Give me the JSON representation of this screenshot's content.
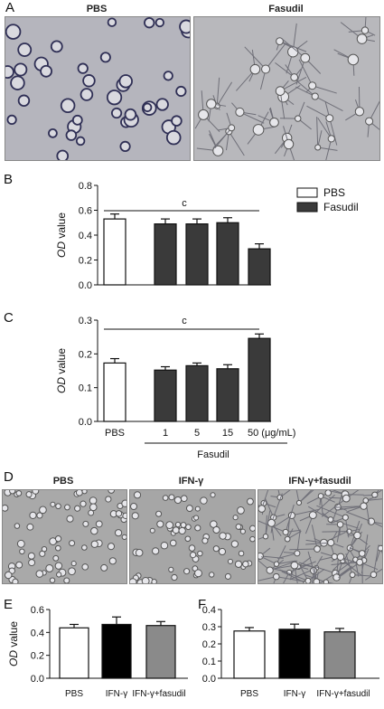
{
  "panels": {
    "a": {
      "letter": "A",
      "labels": [
        "PBS",
        "Fasudil"
      ]
    },
    "b": {
      "letter": "B"
    },
    "c": {
      "letter": "C"
    },
    "d": {
      "letter": "D",
      "labels": [
        "PBS",
        "IFN-γ",
        "IFN-γ+fasudil"
      ]
    },
    "e": {
      "letter": "E"
    },
    "f": {
      "letter": "F"
    }
  },
  "colors": {
    "white_bar": "#ffffff",
    "dark_bar": "#3a3a3a",
    "black_bar": "#000000",
    "gray_bar": "#8a8a8a"
  },
  "chart_data": [
    {
      "id": "B",
      "type": "bar",
      "ylabel_italic": "OD",
      "ylabel_rest": " value",
      "ylim": [
        0,
        0.8
      ],
      "yticks": [
        "0.0",
        "0.2",
        "0.4",
        "0.6",
        "0.8"
      ],
      "series": [
        {
          "name": "PBS",
          "values": [
            0.53
          ]
        },
        {
          "name": "Fasudil",
          "values": [
            0.49,
            0.49,
            0.5,
            0.29
          ]
        }
      ],
      "errors": [
        0.04,
        0.04,
        0.04,
        0.04,
        0.04
      ],
      "significance": "c",
      "legend": {
        "position": "top-right",
        "items": [
          "PBS",
          "Fasudil"
        ]
      }
    },
    {
      "id": "C",
      "type": "bar",
      "ylabel_italic": "OD",
      "ylabel_rest": " value",
      "ylim": [
        0,
        0.3
      ],
      "yticks": [
        "0.0",
        "0.1",
        "0.2",
        "0.3"
      ],
      "categories": [
        "PBS",
        "1",
        "5",
        "15",
        "50 (μg/mL)"
      ],
      "values": [
        0.173,
        0.152,
        0.165,
        0.156,
        0.246
      ],
      "errors": [
        0.013,
        0.01,
        0.008,
        0.012,
        0.013
      ],
      "group_label": "Fasudil",
      "significance": "c"
    },
    {
      "id": "E",
      "type": "bar",
      "ylabel_italic": "OD",
      "ylabel_rest": " value",
      "ylim": [
        0,
        0.6
      ],
      "yticks": [
        "0.0",
        "0.2",
        "0.4",
        "0.6"
      ],
      "categories": [
        "PBS",
        "IFN-γ",
        "IFN-γ+fasudil"
      ],
      "values": [
        0.44,
        0.47,
        0.46
      ],
      "errors": [
        0.03,
        0.065,
        0.035
      ]
    },
    {
      "id": "F",
      "type": "bar",
      "ylim": [
        0,
        0.4
      ],
      "yticks": [
        "0.0",
        "0.1",
        "0.2",
        "0.3",
        "0.4"
      ],
      "categories": [
        "PBS",
        "IFN-γ",
        "IFN-γ+fasudil"
      ],
      "values": [
        0.275,
        0.285,
        0.27
      ],
      "errors": [
        0.02,
        0.03,
        0.02
      ]
    }
  ]
}
